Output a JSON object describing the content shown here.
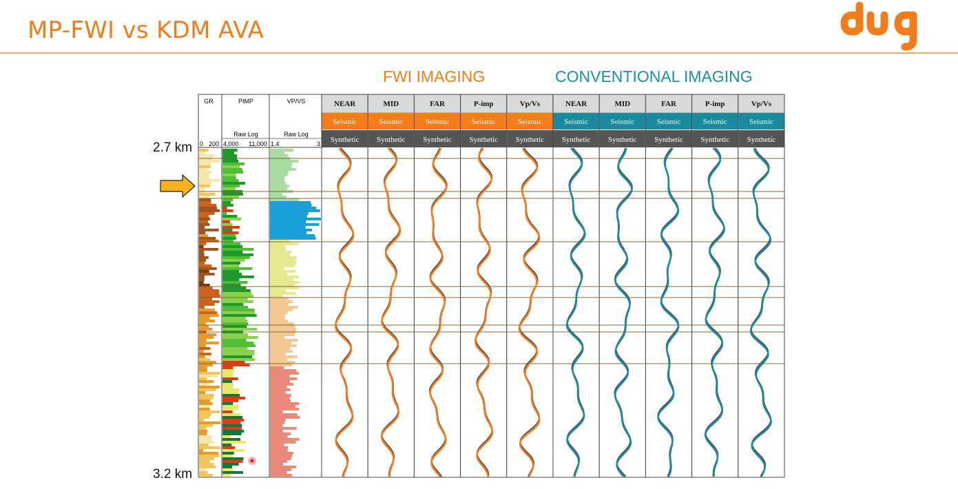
{
  "title": "MP-FWI vs KDM AVA",
  "logo_text": "dug",
  "sections": {
    "fwi": "FWI IMAGING",
    "conventional": "CONVENTIONAL IMAGING"
  },
  "depth": {
    "top": "2.7 km",
    "bottom": "3.2 km"
  },
  "logs": [
    {
      "name": "GR",
      "raw": "",
      "scale_left": "0",
      "scale_right": "200"
    },
    {
      "name": "PIMP",
      "raw": "Raw Log",
      "scale_left": "4,000",
      "scale_right": "11,000"
    },
    {
      "name": "VP/VS",
      "raw": "Raw Log",
      "scale_left": "1.4",
      "scale_right": "3"
    }
  ],
  "columns": [
    {
      "label": "NEAR",
      "group": "fwi"
    },
    {
      "label": "MID",
      "group": "fwi"
    },
    {
      "label": "FAR",
      "group": "fwi"
    },
    {
      "label": "P-imp",
      "group": "fwi"
    },
    {
      "label": "Vp/Vs",
      "group": "fwi"
    },
    {
      "label": "NEAR",
      "group": "conv"
    },
    {
      "label": "MID",
      "group": "conv"
    },
    {
      "label": "FAR",
      "group": "conv"
    },
    {
      "label": "P-imp",
      "group": "conv"
    },
    {
      "label": "Vp/Vs",
      "group": "conv"
    }
  ],
  "row_labels": {
    "seismic": "Seismic",
    "synthetic": "Synthetic"
  },
  "colors": {
    "fwi": "#f47c1a",
    "conv": "#1a8a9e",
    "synthetic_row": "#555555",
    "header_row": "#d9d9d9",
    "horizon": "#7a6a2a",
    "synthetic_trace": "#555555",
    "arrow": "#f5b21e"
  }
}
